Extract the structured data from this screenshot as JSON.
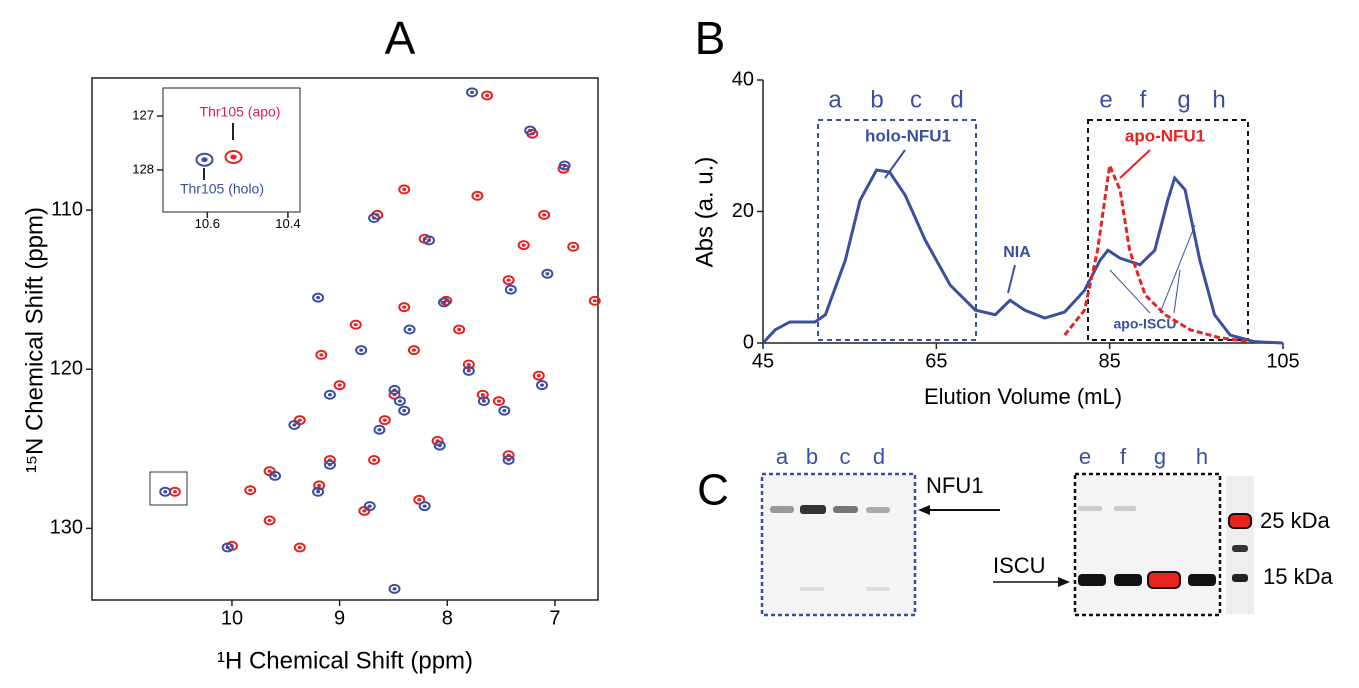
{
  "chart_data": [
    {
      "type": "scatter",
      "panel_label": "A",
      "x_label": "¹H Chemical Shift (ppm)",
      "y_label": "¹⁵N Chemical Shift (ppm)",
      "xlim": [
        11.3,
        6.6
      ],
      "ylim": [
        101.7,
        134.5
      ],
      "y_inverted": true,
      "frame": true,
      "xticks": [
        10,
        9,
        8,
        7
      ],
      "yticks": [
        110,
        120,
        130
      ],
      "series": [
        {
          "color": "#e8221f",
          "x": [
            7.63,
            7.21,
            6.63,
            6.92,
            7.72,
            8.21,
            8.65,
            7.29,
            6.83,
            7.43,
            8.01,
            9.17,
            8.85,
            8.31,
            7.8,
            9.37,
            9.0,
            8.58,
            8.09,
            7.52,
            9.65,
            9.19,
            9.83,
            8.77,
            8.26,
            7.43,
            10.0,
            9.37,
            9.65,
            8.68,
            7.15,
            8.4,
            7.89,
            7.1,
            8.4,
            8.49,
            9.09,
            7.67,
            10.53
          ],
          "values": [
            102.8,
            105.2,
            115.7,
            107.4,
            109.1,
            111.8,
            110.3,
            112.2,
            112.3,
            114.4,
            115.7,
            119.1,
            117.2,
            118.8,
            119.7,
            123.2,
            121.0,
            123.2,
            124.5,
            122.0,
            126.4,
            127.3,
            127.6,
            128.9,
            128.2,
            125.4,
            131.1,
            131.2,
            129.5,
            125.7,
            120.4,
            116.1,
            117.5,
            110.3,
            108.7,
            121.6,
            125.7,
            121.6,
            127.7
          ]
        },
        {
          "color": "#3a4fa0",
          "x": [
            7.77,
            7.23,
            6.91,
            8.17,
            8.68,
            7.41,
            8.03,
            8.35,
            7.8,
            8.44,
            8.4,
            8.49,
            9.09,
            9.42,
            8.63,
            8.07,
            7.47,
            9.6,
            9.2,
            8.72,
            8.21,
            8.49,
            10.04,
            7.12,
            8.8,
            9.2,
            10.62,
            7.07,
            9.09,
            7.66,
            7.43
          ],
          "values": [
            102.6,
            105.0,
            107.2,
            111.9,
            110.5,
            115.0,
            115.8,
            117.5,
            120.1,
            122.0,
            122.6,
            121.3,
            121.6,
            123.5,
            123.8,
            124.8,
            122.6,
            126.7,
            127.7,
            128.6,
            128.6,
            133.8,
            131.2,
            121.0,
            118.8,
            115.5,
            127.7,
            114.0,
            126.0,
            122.0,
            125.7
          ]
        }
      ]
    },
    {
      "type": "scatter",
      "xlim": [
        10.71,
        10.37
      ],
      "ylim": [
        126.48,
        128.78
      ],
      "y_inverted": true,
      "frame": true,
      "xticks": [
        10.6,
        10.4
      ],
      "yticks": [
        127,
        128
      ],
      "annotations": [
        "Thr105 (apo)",
        "Thr105 (holo)"
      ],
      "series": [
        {
          "color": "#e8221f",
          "x": [
            10.535
          ],
          "values": [
            127.76
          ]
        },
        {
          "color": "#3a4fa0",
          "x": [
            10.607
          ],
          "values": [
            127.81
          ]
        }
      ]
    },
    {
      "type": "line",
      "panel_label": "B",
      "x_label": "Elution Volume (mL)",
      "y_label": "Abs (a. u.)",
      "xlim": [
        45,
        105
      ],
      "ylim": [
        0,
        40
      ],
      "frame": false,
      "xticks": [
        45,
        65,
        85,
        105
      ],
      "yticks": [
        0,
        20,
        40
      ],
      "fractions": [
        "a",
        "b",
        "c",
        "d",
        "e",
        "f",
        "g",
        "h"
      ],
      "annotations": [
        "holo-NFU1",
        "NIA",
        "apo-NFU1",
        "apo-ISCU"
      ],
      "series": [
        {
          "color": "#3a4fa0",
          "style": "solid",
          "x": [
            45,
            46.4,
            48.1,
            51,
            52.2,
            54.5,
            56.2,
            58.1,
            59.6,
            61.4,
            63.7,
            66.6,
            69.5,
            71.8,
            73.5,
            75.2,
            77.5,
            79.8,
            82.1,
            83.9,
            84.8,
            86.2,
            88.5,
            90.2,
            91.7,
            92.5,
            93.7,
            95.4,
            97.1,
            98.9,
            101.7,
            105
          ],
          "values": [
            0,
            2,
            3.2,
            3.2,
            4.3,
            12.6,
            21.7,
            26.3,
            26,
            22.5,
            15.7,
            8.8,
            5,
            4.3,
            6.5,
            5,
            3.8,
            4.7,
            8,
            12.6,
            14.1,
            12.9,
            11.9,
            14.1,
            21.7,
            25.1,
            23.3,
            12.6,
            4.3,
            1.2,
            0.2,
            0
          ]
        },
        {
          "color": "#e8221f",
          "style": "dashed",
          "x": [
            79.8,
            82.1,
            83.6,
            85,
            86.2,
            87.3,
            89.1,
            91.4,
            94.3,
            97.7,
            101.2
          ],
          "values": [
            1.2,
            5,
            14.1,
            27,
            23.3,
            14.1,
            7.3,
            4.3,
            2,
            0.8,
            0.2
          ]
        }
      ]
    }
  ],
  "gel": {
    "panel_label": "C",
    "lanes_left": [
      "a",
      "b",
      "c",
      "d"
    ],
    "lanes_right": [
      "e",
      "f",
      "g",
      "h"
    ],
    "bands": [
      "NFU1",
      "ISCU"
    ],
    "markers": [
      "25 kDa",
      "15 kDa"
    ]
  }
}
